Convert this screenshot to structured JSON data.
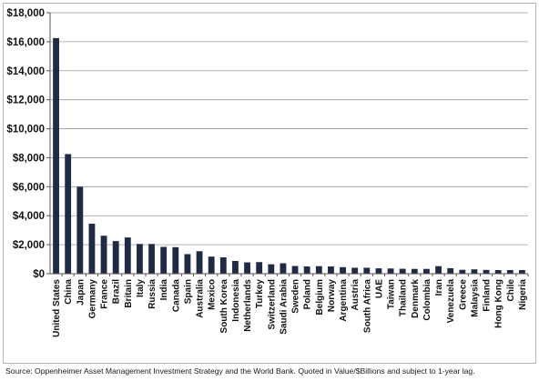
{
  "chart_data": {
    "type": "bar",
    "title": "",
    "xlabel": "",
    "ylabel": "",
    "ylim": [
      0,
      18000
    ],
    "yticks": [
      "$0",
      "$2,000",
      "$4,000",
      "$6,000",
      "$8,000",
      "$10,000",
      "$12,000",
      "$14,000",
      "$16,000",
      "$18,000"
    ],
    "ytick_values": [
      0,
      2000,
      4000,
      6000,
      8000,
      10000,
      12000,
      14000,
      16000,
      18000
    ],
    "grid": true,
    "bar_color": "#1f2a44",
    "categories": [
      "United States",
      "China",
      "Japan",
      "Germany",
      "France",
      "Brazil",
      "Britain",
      "Italy",
      "Russia",
      "India",
      "Canada",
      "Spain",
      "Australia",
      "Mexico",
      "South Korea",
      "Indonesia",
      "Netherlands",
      "Turkey",
      "Switzerland",
      "Saudi Arabia",
      "Sweden",
      "Poland",
      "Belgium",
      "Norway",
      "Argentina",
      "Austria",
      "South Africa",
      "UAE",
      "Taiwan",
      "Thailand",
      "Denmark",
      "Colombia",
      "Iran",
      "Venezuela",
      "Greece",
      "Malaysia",
      "Finland",
      "Hong Kong",
      "Chile",
      "Nigeria"
    ],
    "values": [
      16250,
      8250,
      6000,
      3450,
      2620,
      2250,
      2500,
      2050,
      2050,
      1850,
      1830,
      1350,
      1550,
      1180,
      1130,
      880,
      780,
      800,
      650,
      720,
      530,
      500,
      520,
      500,
      450,
      410,
      410,
      370,
      360,
      340,
      330,
      330,
      520,
      380,
      270,
      300,
      260,
      250,
      250,
      250
    ]
  },
  "footer": {
    "source": "Source: Oppenheimer Asset Management Investment Strategy and the World Bank.  Quoted in Value/$Billions and subject to 1-year lag."
  }
}
